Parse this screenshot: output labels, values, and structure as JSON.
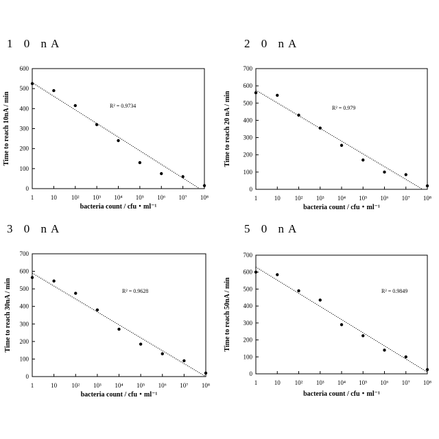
{
  "chart_data": [
    {
      "type": "scatter",
      "title": "1 0 nA",
      "xlabel": "bacteria count / cfu・ml⁻¹",
      "ylabel": "Time to reach 10nA / min",
      "xscale": "log",
      "xlim": [
        1,
        100000000
      ],
      "ylim": [
        0,
        600
      ],
      "yticks": [
        0,
        100,
        200,
        300,
        400,
        500,
        600
      ],
      "xticks": [
        "1",
        "10",
        "10²",
        "10³",
        "10⁴",
        "10⁵",
        "10⁶",
        "10⁷",
        "10⁸"
      ],
      "annotation": "R² = 0.9734",
      "x": [
        1,
        10,
        100,
        1000,
        10000,
        100000,
        1000000,
        10000000,
        100000000
      ],
      "y": [
        525,
        490,
        415,
        320,
        240,
        130,
        75,
        60,
        15
      ],
      "trendline": {
        "x0": 1,
        "y0": 530,
        "x1": 60000000,
        "y1": 0
      }
    },
    {
      "type": "scatter",
      "title": "2 0 nA",
      "xlabel": "bacteria count / cfu・ml⁻¹",
      "ylabel": "Time to reach 20 nA / min",
      "xscale": "log",
      "xlim": [
        1,
        100000000
      ],
      "ylim": [
        0,
        700
      ],
      "yticks": [
        0,
        100,
        200,
        300,
        400,
        500,
        600,
        700
      ],
      "xticks": [
        "1",
        "10",
        "10²",
        "10³",
        "10⁴",
        "10⁵",
        "10⁶",
        "10⁷",
        "10⁸"
      ],
      "annotation": "R² = 0.979",
      "x": [
        1,
        10,
        100,
        1000,
        10000,
        100000,
        1000000,
        10000000,
        100000000
      ],
      "y": [
        560,
        545,
        430,
        355,
        255,
        170,
        100,
        85,
        20
      ],
      "trendline": {
        "x0": 1,
        "y0": 575,
        "x1": 60000000,
        "y1": 0
      }
    },
    {
      "type": "scatter",
      "title": "3 0 nA",
      "xlabel": "bacteria count / cfu・ml⁻¹",
      "ylabel": "Time to reach 30nA / min",
      "xscale": "log",
      "xlim": [
        1,
        100000000
      ],
      "ylim": [
        0,
        700
      ],
      "yticks": [
        0,
        100,
        200,
        300,
        400,
        500,
        600,
        700
      ],
      "xticks": [
        "1",
        "10",
        "10²",
        "10³",
        "10⁴",
        "10⁵",
        "10⁶",
        "10⁷",
        "10⁸"
      ],
      "annotation": "R² = 0.9628",
      "x": [
        1,
        10,
        100,
        1000,
        10000,
        100000,
        1000000,
        10000000,
        100000000
      ],
      "y": [
        565,
        545,
        475,
        380,
        270,
        185,
        130,
        90,
        20
      ],
      "trendline": {
        "x0": 1,
        "y0": 590,
        "x1": 100000000,
        "y1": 0
      }
    },
    {
      "type": "scatter",
      "title": "5 0 nA",
      "xlabel": "bacteria count / cfu・ml⁻¹",
      "ylabel": "Time to reach 50nA / min",
      "xscale": "log",
      "xlim": [
        1,
        100000000
      ],
      "ylim": [
        0,
        700
      ],
      "yticks": [
        0,
        100,
        200,
        300,
        400,
        500,
        600,
        700
      ],
      "xticks": [
        "1",
        "10",
        "10²",
        "10³",
        "10⁴",
        "10⁵",
        "10⁶",
        "10⁷",
        "10⁸"
      ],
      "annotation": "R² = 0.9849",
      "x": [
        1,
        10,
        100,
        1000,
        10000,
        100000,
        1000000,
        10000000,
        100000000
      ],
      "y": [
        600,
        585,
        490,
        435,
        290,
        225,
        140,
        100,
        25
      ],
      "trendline": {
        "x0": 1,
        "y0": 630,
        "x1": 100000000,
        "y1": 10
      }
    }
  ]
}
